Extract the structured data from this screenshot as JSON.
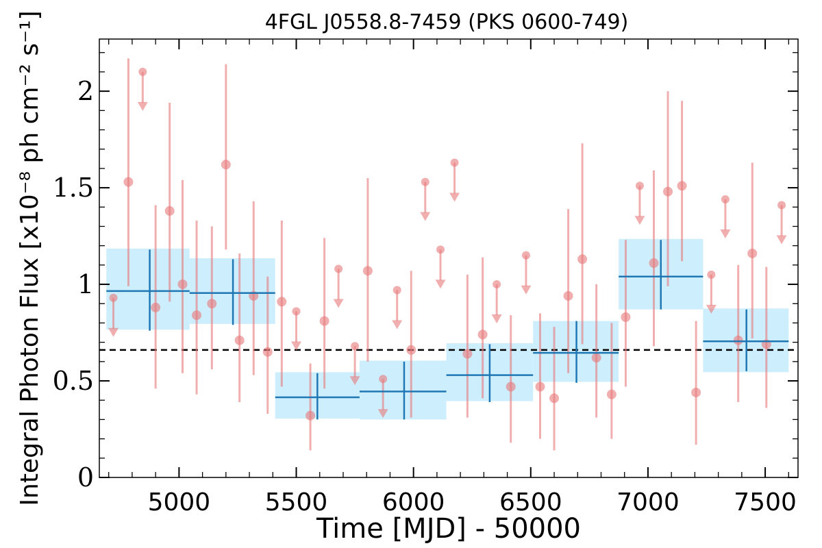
{
  "chart_data": {
    "type": "scatter",
    "title": "4FGL J0558.8-7459 (PKS 0600-749)",
    "xlabel": "Time [MJD] - 50000",
    "ylabel": "Integral Photon Flux [x10⁻⁸ ph cm⁻² s⁻¹]",
    "xlim": [
      4660,
      7640
    ],
    "ylim": [
      0,
      2.27
    ],
    "xticks": [
      5000,
      5500,
      6000,
      6500,
      7000,
      7500
    ],
    "xtick_labels": [
      "5000",
      "5500",
      "6000",
      "6500",
      "7000",
      "7500"
    ],
    "yticks": [
      0,
      0.5,
      1,
      1.5,
      2
    ],
    "ytick_labels": [
      "0",
      "0.5",
      "1",
      "1.5",
      "2"
    ],
    "reference_line": 0.66,
    "colors": {
      "points": "#e8787a",
      "bins": "#1f77b4",
      "bin_fill": "#cdeefd",
      "reference": "#000000"
    },
    "detections": [
      {
        "x": 4784,
        "y": 1.53,
        "ylo": 0.99,
        "yhi": 2.17
      },
      {
        "x": 4900,
        "y": 0.88,
        "ylo": 0.46,
        "yhi": 1.41
      },
      {
        "x": 4960,
        "y": 1.38,
        "ylo": 0.91,
        "yhi": 1.94
      },
      {
        "x": 5015,
        "y": 1.0,
        "ylo": 0.54,
        "yhi": 1.54
      },
      {
        "x": 5075,
        "y": 0.84,
        "ylo": 0.43,
        "yhi": 1.33
      },
      {
        "x": 5140,
        "y": 0.9,
        "ylo": 0.56,
        "yhi": 1.3
      },
      {
        "x": 5200,
        "y": 1.62,
        "ylo": 1.18,
        "yhi": 2.14
      },
      {
        "x": 5258,
        "y": 0.71,
        "ylo": 0.39,
        "yhi": 1.16
      },
      {
        "x": 5318,
        "y": 0.94,
        "ylo": 0.53,
        "yhi": 1.43
      },
      {
        "x": 5378,
        "y": 0.65,
        "ylo": 0.33,
        "yhi": 1.04
      },
      {
        "x": 5438,
        "y": 0.91,
        "ylo": 0.47,
        "yhi": 1.33
      },
      {
        "x": 5560,
        "y": 0.32,
        "ylo": 0.14,
        "yhi": 0.59
      },
      {
        "x": 5620,
        "y": 0.81,
        "ylo": 0.46,
        "yhi": 1.24
      },
      {
        "x": 5805,
        "y": 1.07,
        "ylo": 0.6,
        "yhi": 1.55
      },
      {
        "x": 5990,
        "y": 0.66,
        "ylo": 0.31,
        "yhi": 1.07
      },
      {
        "x": 6230,
        "y": 0.64,
        "ylo": 0.31,
        "yhi": 1.05
      },
      {
        "x": 6295,
        "y": 0.74,
        "ylo": 0.41,
        "yhi": 1.14
      },
      {
        "x": 6415,
        "y": 0.47,
        "ylo": 0.18,
        "yhi": 0.84
      },
      {
        "x": 6540,
        "y": 0.47,
        "ylo": 0.2,
        "yhi": 0.85
      },
      {
        "x": 6600,
        "y": 0.41,
        "ylo": 0.14,
        "yhi": 0.78
      },
      {
        "x": 6660,
        "y": 0.94,
        "ylo": 0.54,
        "yhi": 1.39
      },
      {
        "x": 6720,
        "y": 1.13,
        "ylo": 0.69,
        "yhi": 1.73
      },
      {
        "x": 6780,
        "y": 0.62,
        "ylo": 0.31,
        "yhi": 1.0
      },
      {
        "x": 6845,
        "y": 0.43,
        "ylo": 0.2,
        "yhi": 0.8
      },
      {
        "x": 6905,
        "y": 0.83,
        "ylo": 0.47,
        "yhi": 1.23
      },
      {
        "x": 7025,
        "y": 1.11,
        "ylo": 0.68,
        "yhi": 1.59
      },
      {
        "x": 7085,
        "y": 1.48,
        "ylo": 0.99,
        "yhi": 2.0
      },
      {
        "x": 7145,
        "y": 1.51,
        "ylo": 1.12,
        "yhi": 1.95
      },
      {
        "x": 7205,
        "y": 0.44,
        "ylo": 0.17,
        "yhi": 0.81
      },
      {
        "x": 7385,
        "y": 0.71,
        "ylo": 0.39,
        "yhi": 1.1
      },
      {
        "x": 7445,
        "y": 1.16,
        "ylo": 0.72,
        "yhi": 1.63
      },
      {
        "x": 7505,
        "y": 0.69,
        "ylo": 0.36,
        "yhi": 1.09
      }
    ],
    "upper_limits": [
      {
        "x": 4720,
        "y": 0.93
      },
      {
        "x": 4845,
        "y": 2.1
      },
      {
        "x": 5500,
        "y": 0.86
      },
      {
        "x": 5680,
        "y": 1.08
      },
      {
        "x": 5750,
        "y": 0.68
      },
      {
        "x": 5870,
        "y": 0.51
      },
      {
        "x": 5930,
        "y": 0.97
      },
      {
        "x": 6050,
        "y": 1.53
      },
      {
        "x": 6115,
        "y": 1.18
      },
      {
        "x": 6175,
        "y": 1.63
      },
      {
        "x": 6355,
        "y": 1.0
      },
      {
        "x": 6480,
        "y": 1.15
      },
      {
        "x": 6965,
        "y": 1.51
      },
      {
        "x": 7270,
        "y": 1.05
      },
      {
        "x": 7330,
        "y": 1.44
      },
      {
        "x": 7570,
        "y": 1.41
      }
    ],
    "bins": [
      {
        "x0": 4690,
        "x1": 5045,
        "x": 4875,
        "y": 0.965,
        "ylo": 0.765,
        "yhi": 1.185,
        "elo": 0.76,
        "ehi": 1.18
      },
      {
        "x0": 5045,
        "x1": 5410,
        "x": 5230,
        "y": 0.955,
        "ylo": 0.795,
        "yhi": 1.135,
        "elo": 0.79,
        "ehi": 1.13
      },
      {
        "x0": 5410,
        "x1": 5770,
        "x": 5590,
        "y": 0.415,
        "ylo": 0.305,
        "yhi": 0.545,
        "elo": 0.3,
        "ehi": 0.54
      },
      {
        "x0": 5770,
        "x1": 6140,
        "x": 5960,
        "y": 0.445,
        "ylo": 0.3,
        "yhi": 0.605,
        "elo": 0.3,
        "ehi": 0.6
      },
      {
        "x0": 6140,
        "x1": 6510,
        "x": 6325,
        "y": 0.53,
        "ylo": 0.395,
        "yhi": 0.695,
        "elo": 0.39,
        "ehi": 0.69
      },
      {
        "x0": 6510,
        "x1": 6875,
        "x": 6695,
        "y": 0.645,
        "ylo": 0.495,
        "yhi": 0.81,
        "elo": 0.49,
        "ehi": 0.81
      },
      {
        "x0": 6875,
        "x1": 7235,
        "x": 7055,
        "y": 1.04,
        "ylo": 0.87,
        "yhi": 1.235,
        "elo": 0.87,
        "ehi": 1.23
      },
      {
        "x0": 7235,
        "x1": 7600,
        "x": 7420,
        "y": 0.705,
        "ylo": 0.545,
        "yhi": 0.875,
        "elo": 0.55,
        "ehi": 0.87
      }
    ]
  }
}
